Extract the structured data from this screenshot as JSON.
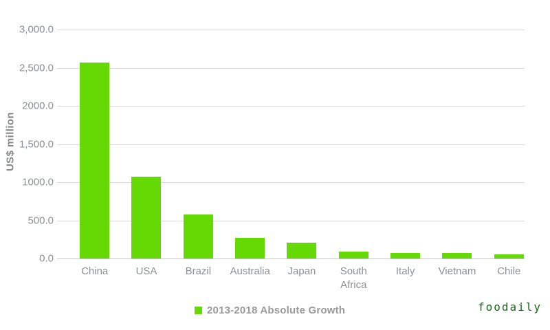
{
  "chart_data": {
    "type": "bar",
    "title": "",
    "categories": [
      "China",
      "USA",
      "Brazil",
      "Australia",
      "Japan",
      "South Africa",
      "Italy",
      "Vietnam",
      "Chile"
    ],
    "values": [
      2570,
      1075,
      575,
      270,
      205,
      90,
      68,
      70,
      50
    ],
    "xlabel": "",
    "ylabel": "US$ million",
    "ylim": [
      0,
      3000
    ],
    "yticks": [
      {
        "label": "3,000.0",
        "value": 3000
      },
      {
        "label": "2,500.0",
        "value": 2500
      },
      {
        "label": "2000.0",
        "value": 2000
      },
      {
        "label": "1,500.0",
        "value": 1500
      },
      {
        "label": "1000.0",
        "value": 1000
      },
      {
        "label": "500.0",
        "value": 500
      },
      {
        "label": "0.0",
        "value": 0
      }
    ],
    "grid": true,
    "legend": {
      "label": "2013-2018 Absolute Growth",
      "position": "bottom"
    }
  },
  "branding": {
    "logo_text": "foodaily"
  },
  "colors": {
    "bar": "#64d904",
    "grid": "#d7dadb",
    "baseline": "#c2c6c8",
    "axis_text": "#8d9093",
    "legend_text": "#98999b",
    "y_title": "#85888a",
    "logo": "#156815",
    "background": "#ffffff"
  }
}
